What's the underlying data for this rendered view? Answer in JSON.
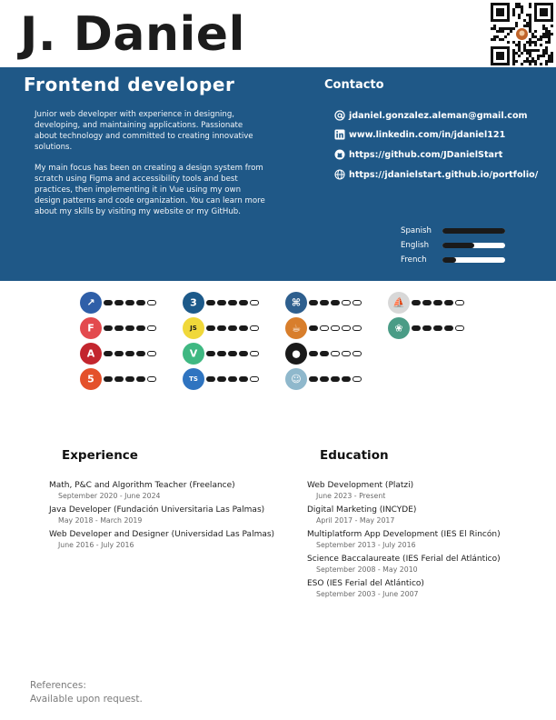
{
  "header": {
    "name": "J. Daniel"
  },
  "profile": {
    "role": "Frontend developer",
    "summary": [
      "Junior web developer with experience in designing, developing, and maintaining applications. Passionate about technology and committed to creating innovative solutions.",
      "My main focus has been on creating a design system from scratch using Figma and accessibility tools and best practices, then implementing it in Vue using my own design patterns and code organization. You can learn more about my skills by visiting my website or my GitHub."
    ]
  },
  "contact": {
    "title": "Contacto",
    "email": "jdaniel.gonzalez.aleman@gmail.com",
    "linkedin": "www.linkedin.com/in/jdaniel121",
    "github": "https://github.com/JDanielStart",
    "website": "https://jdanielstart.github.io/portfolio/"
  },
  "languages": [
    {
      "name": "Spanish",
      "level": 1.0
    },
    {
      "name": "English",
      "level": 0.5
    },
    {
      "name": "French",
      "level": 0.22
    }
  ],
  "skills": [
    {
      "icon": "eleventy-icon",
      "color": "#2f5fa8",
      "glyph": "↗",
      "rating": 4
    },
    {
      "icon": "figma-icon",
      "color": "#e34a4e",
      "glyph": "F",
      "rating": 4
    },
    {
      "icon": "angular-icon",
      "color": "#c3262e",
      "glyph": "A",
      "rating": 4
    },
    {
      "icon": "html5-icon",
      "color": "#e4512b",
      "glyph": "5",
      "rating": 4
    },
    {
      "icon": "css3-icon",
      "color": "#1d5a8a",
      "glyph": "3",
      "rating": 4
    },
    {
      "icon": "javascript-icon",
      "color": "#f0d83a",
      "glyph": "JS",
      "rating": 4
    },
    {
      "icon": "vue-icon",
      "color": "#3fb882",
      "glyph": "V",
      "rating": 4
    },
    {
      "icon": "typescript-icon",
      "color": "#2f74c0",
      "glyph": "TS",
      "rating": 4
    },
    {
      "icon": "python-icon",
      "color": "#2e5f8e",
      "glyph": "⌘",
      "rating": 3
    },
    {
      "icon": "java-icon",
      "color": "#d87e2c",
      "glyph": "☕",
      "rating": 1
    },
    {
      "icon": "github-icon",
      "color": "#1a1a1a",
      "glyph": "●",
      "rating": 2
    },
    {
      "icon": "copilot-icon",
      "color": "#8fb8cc",
      "glyph": "☺",
      "rating": 4
    },
    {
      "icon": "midjourney-icon",
      "color": "#d8d8d8",
      "glyph": "⛵",
      "rating": 4
    },
    {
      "icon": "openai-icon",
      "color": "#4a9c86",
      "glyph": "❀",
      "rating": 4
    }
  ],
  "experience": {
    "title": "Experience",
    "items": [
      {
        "title": "Math, P&C and Algorithm Teacher (Freelance)",
        "dates": "September 2020 - June 2024"
      },
      {
        "title": "Java Developer (Fundación Universitaria Las Palmas)",
        "dates": "May 2018 - March 2019"
      },
      {
        "title": "Web Developer and Designer (Universidad Las Palmas)",
        "dates": "June  2016 - July 2016"
      }
    ]
  },
  "education": {
    "title": "Education",
    "items": [
      {
        "title": "Web Development (Platzi)",
        "dates": "June 2023 - Present"
      },
      {
        "title": "Digital Marketing (INCYDE)",
        "dates": "April 2017 - May 2017"
      },
      {
        "title": "Multiplatform App Development (IES El Rincón)",
        "dates": "September 2013 - July 2016"
      },
      {
        "title": "Science Baccalaureate (IES Ferial del Atlántico)",
        "dates": "September 2008 - May 2010"
      },
      {
        "title": "ESO (IES Ferial del Atlántico)",
        "dates": "September 2003 - June 2007"
      }
    ]
  },
  "references": {
    "label": "References:",
    "value": "Available upon request."
  }
}
